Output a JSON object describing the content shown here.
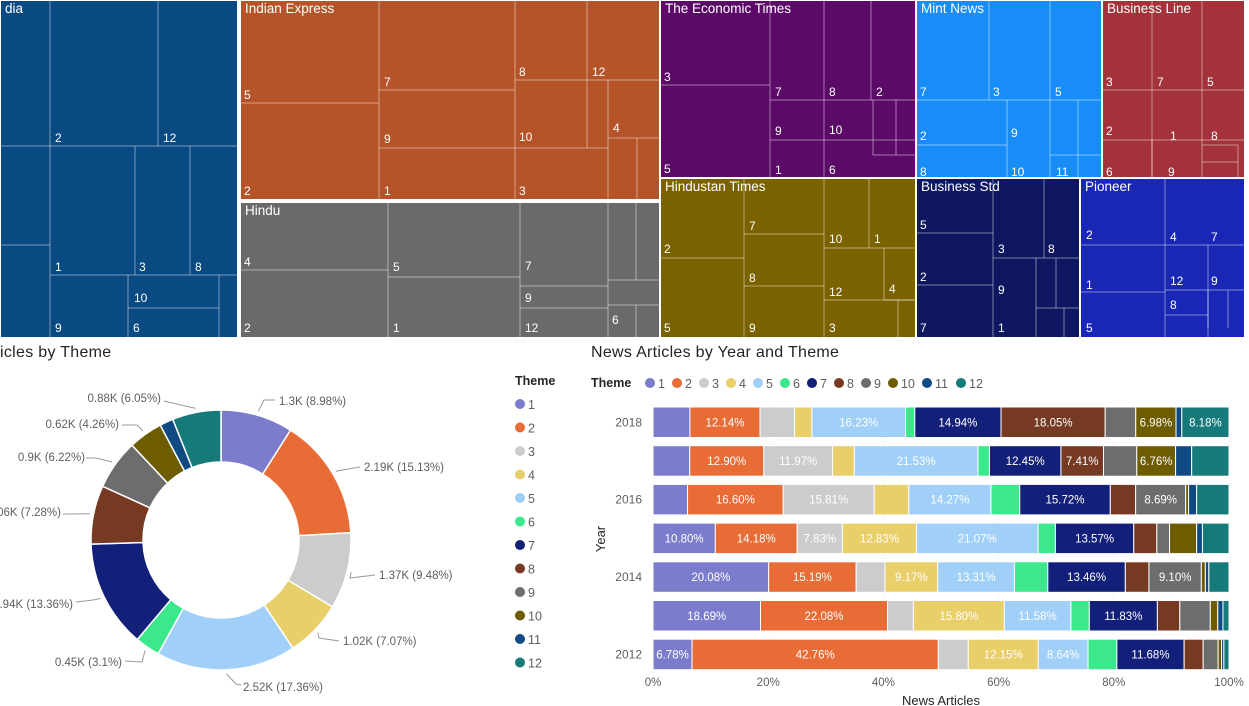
{
  "colors": {
    "1": "#7c7ccc",
    "2": "#e86c36",
    "3": "#cccccc",
    "4": "#e8cf6a",
    "5": "#a0cff8",
    "6": "#3be88c",
    "7": "#12207a",
    "8": "#763a22",
    "9": "#6d6d6d",
    "10": "#6d5c00",
    "11": "#0f4a82",
    "12": "#177a7a"
  },
  "treemap": {
    "groups": [
      {
        "name": "dia",
        "color": "#0a4a82",
        "labels": [
          {
            "t": "2"
          },
          {
            "t": "12"
          },
          {
            "t": "1"
          },
          {
            "t": "3"
          },
          {
            "t": "8"
          },
          {
            "t": "10"
          },
          {
            "t": "9"
          },
          {
            "t": "6"
          }
        ]
      },
      {
        "name": "Indian Express",
        "color": "#b55428",
        "labels": [
          {
            "t": "5"
          },
          {
            "t": "7"
          },
          {
            "t": "8"
          },
          {
            "t": "12"
          },
          {
            "t": "9"
          },
          {
            "t": "10"
          },
          {
            "t": "4"
          },
          {
            "t": "2"
          },
          {
            "t": "1"
          },
          {
            "t": "3"
          }
        ]
      },
      {
        "name": "Hindu",
        "color": "#6a6a6a",
        "labels": [
          {
            "t": "4"
          },
          {
            "t": "5"
          },
          {
            "t": "7"
          },
          {
            "t": "9"
          },
          {
            "t": "2"
          },
          {
            "t": "1"
          },
          {
            "t": "12"
          },
          {
            "t": "6"
          }
        ]
      },
      {
        "name": "The Economic Times",
        "color": "#5c0a68",
        "labels": [
          {
            "t": "3"
          },
          {
            "t": "7"
          },
          {
            "t": "8"
          },
          {
            "t": "2"
          },
          {
            "t": "9"
          },
          {
            "t": "10"
          },
          {
            "t": "5"
          },
          {
            "t": "1"
          },
          {
            "t": "6"
          }
        ]
      },
      {
        "name": "Hindustan Times",
        "color": "#7a6200",
        "labels": [
          {
            "t": "2"
          },
          {
            "t": "7"
          },
          {
            "t": "10"
          },
          {
            "t": "1"
          },
          {
            "t": "8"
          },
          {
            "t": "12"
          },
          {
            "t": "4"
          },
          {
            "t": "5"
          },
          {
            "t": "9"
          },
          {
            "t": "3"
          }
        ]
      },
      {
        "name": "Mint News",
        "color": "#188df7",
        "labels": [
          {
            "t": "7"
          },
          {
            "t": "3"
          },
          {
            "t": "5"
          },
          {
            "t": "2"
          },
          {
            "t": "9"
          },
          {
            "t": "8"
          },
          {
            "t": "10"
          },
          {
            "t": "11"
          }
        ]
      },
      {
        "name": "Business Line",
        "color": "#a4323a",
        "labels": [
          {
            "t": "3"
          },
          {
            "t": "7"
          },
          {
            "t": "5"
          },
          {
            "t": "2"
          },
          {
            "t": "1"
          },
          {
            "t": "8"
          },
          {
            "t": "6"
          },
          {
            "t": "9"
          }
        ]
      },
      {
        "name": "Business Std",
        "color": "#0e1760",
        "labels": [
          {
            "t": "5"
          },
          {
            "t": "3"
          },
          {
            "t": "8"
          },
          {
            "t": "2"
          },
          {
            "t": "9"
          },
          {
            "t": "7"
          },
          {
            "t": "1"
          }
        ]
      },
      {
        "name": "Pioneer",
        "color": "#1a26b5",
        "labels": [
          {
            "t": "2"
          },
          {
            "t": "4"
          },
          {
            "t": "7"
          },
          {
            "t": "1"
          },
          {
            "t": "12"
          },
          {
            "t": "9"
          },
          {
            "t": "8"
          },
          {
            "t": "5"
          }
        ]
      }
    ]
  },
  "donut_title": "icles by Theme",
  "bars_title": "News Articles by Year and Theme",
  "donut_legend": {
    "title": "Theme",
    "items": [
      "1",
      "2",
      "3",
      "4",
      "5",
      "6",
      "7",
      "8",
      "9",
      "10",
      "11",
      "12"
    ]
  },
  "bars_legend": {
    "title": "Theme",
    "items": [
      "1",
      "2",
      "3",
      "4",
      "5",
      "6",
      "7",
      "8",
      "9",
      "10",
      "11",
      "12"
    ]
  },
  "chart_data": [
    {
      "type": "pie",
      "variant": "donut",
      "title": "",
      "slices": [
        {
          "theme": "1",
          "percent": 8.98,
          "label": "1.3K (8.98%)"
        },
        {
          "theme": "2",
          "percent": 15.13,
          "label": "2.19K (15.13%)"
        },
        {
          "theme": "3",
          "percent": 9.48,
          "label": "1.37K (9.48%)"
        },
        {
          "theme": "4",
          "percent": 7.07,
          "label": "1.02K (7.07%)"
        },
        {
          "theme": "5",
          "percent": 17.36,
          "label": "2.52K (17.36%)"
        },
        {
          "theme": "6",
          "percent": 3.1,
          "label": "0.45K (3.1%)"
        },
        {
          "theme": "7",
          "percent": 13.36,
          "label": ".94K (13.36%)"
        },
        {
          "theme": "8",
          "percent": 7.28,
          "label": "06K (7.28%)"
        },
        {
          "theme": "9",
          "percent": 6.22,
          "label": "0.9K (6.22%)"
        },
        {
          "theme": "10",
          "percent": 4.26,
          "label": "0.62K (4.26%)"
        },
        {
          "theme": "11",
          "percent": 1.69,
          "label": ""
        },
        {
          "theme": "12",
          "percent": 6.05,
          "label": "0.88K (6.05%)"
        }
      ]
    },
    {
      "type": "bar",
      "variant": "100% stacked horizontal",
      "xlabel": "News Articles",
      "ylabel": "Year",
      "xlim": [
        0,
        100
      ],
      "xticks": [
        "0%",
        "20%",
        "40%",
        "60%",
        "80%",
        "100%"
      ],
      "categories": [
        "2018",
        "2017",
        "2016",
        "2015",
        "2014",
        "2013",
        "2012"
      ],
      "category_labels": [
        "2018",
        "",
        "2016",
        "",
        "2014",
        "",
        "2012"
      ],
      "series": [
        {
          "name": "1",
          "values": [
            6.4,
            6.4,
            6.0,
            10.8,
            20.08,
            18.69,
            6.78
          ],
          "labels": [
            "",
            "",
            "",
            "10.80%",
            "20.08%",
            "18.69%",
            "6.78%"
          ]
        },
        {
          "name": "2",
          "values": [
            12.14,
            12.9,
            16.6,
            14.18,
            15.19,
            22.08,
            42.76
          ],
          "labels": [
            "12.14%",
            "12.90%",
            "16.60%",
            "14.18%",
            "15.19%",
            "22.08%",
            "42.76%"
          ]
        },
        {
          "name": "3",
          "values": [
            6.0,
            11.97,
            15.81,
            7.83,
            5.0,
            4.5,
            5.2
          ],
          "labels": [
            "",
            "11.97%",
            "15.81%",
            "7.83%",
            "",
            "",
            ""
          ]
        },
        {
          "name": "4",
          "values": [
            3.0,
            3.8,
            6.0,
            12.83,
            9.17,
            15.8,
            12.15
          ],
          "labels": [
            "",
            "",
            "",
            "12.83%",
            "9.17%",
            "15.80%",
            "12.15%"
          ]
        },
        {
          "name": "5",
          "values": [
            16.23,
            21.53,
            14.27,
            21.07,
            13.31,
            11.58,
            8.64
          ],
          "labels": [
            "16.23%",
            "21.53%",
            "14.27%",
            "21.07%",
            "13.31%",
            "11.58%",
            "8.64%"
          ]
        },
        {
          "name": "6",
          "values": [
            1.6,
            2.0,
            5.0,
            3.0,
            5.8,
            3.2,
            5.0
          ],
          "labels": [
            "",
            "",
            "",
            "",
            "",
            "",
            ""
          ]
        },
        {
          "name": "7",
          "values": [
            14.94,
            12.45,
            15.72,
            13.57,
            13.46,
            11.83,
            11.68
          ],
          "labels": [
            "14.94%",
            "12.45%",
            "15.72%",
            "13.57%",
            "13.46%",
            "11.83%",
            "11.68%"
          ]
        },
        {
          "name": "8",
          "values": [
            18.05,
            7.41,
            4.4,
            4.0,
            4.1,
            3.9,
            3.3
          ],
          "labels": [
            "18.05%",
            "7.41%",
            "",
            "",
            "",
            "",
            ""
          ]
        },
        {
          "name": "9",
          "values": [
            5.3,
            5.8,
            8.69,
            2.2,
            9.1,
            5.3,
            2.6
          ],
          "labels": [
            "",
            "",
            "8.69%",
            "",
            "9.10%",
            "",
            ""
          ]
        },
        {
          "name": "10",
          "values": [
            6.98,
            6.76,
            0.5,
            4.7,
            0.7,
            1.3,
            0.6
          ],
          "labels": [
            "6.98%",
            "6.76%",
            "",
            "",
            "",
            "",
            ""
          ]
        },
        {
          "name": "11",
          "values": [
            1.0,
            2.8,
            1.4,
            1.0,
            0.6,
            0.9,
            0.4
          ],
          "labels": [
            "",
            "",
            "",
            "",
            "",
            "",
            ""
          ]
        },
        {
          "name": "12",
          "values": [
            8.18,
            6.5,
            5.62,
            4.6,
            3.5,
            1.05,
            0.89
          ],
          "labels": [
            "8.18%",
            "",
            "",
            "",
            "",
            "",
            ""
          ]
        }
      ]
    }
  ]
}
